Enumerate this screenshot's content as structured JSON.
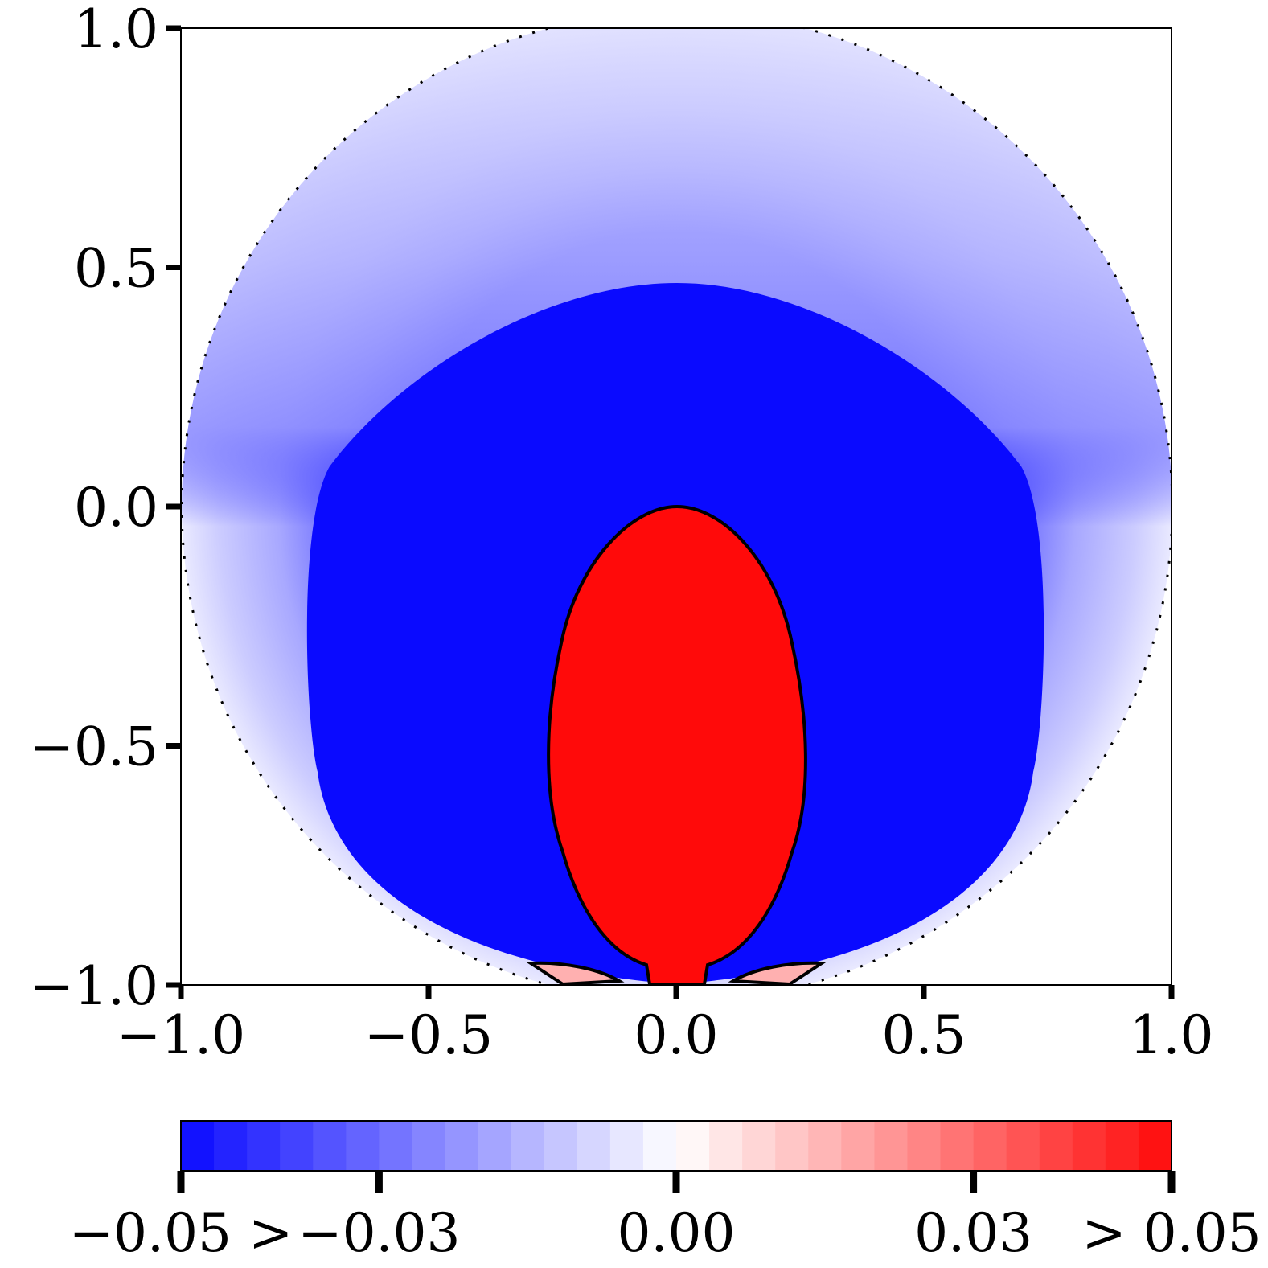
{
  "chart_data": {
    "type": "heatmap",
    "title": "",
    "xlabel": "",
    "ylabel": "",
    "xlim": [
      -1.0,
      1.0
    ],
    "ylim": [
      -1.0,
      1.0
    ],
    "x_ticks": [
      {
        "value": -1.0,
        "label": "−1.0"
      },
      {
        "value": -0.5,
        "label": "−0.5"
      },
      {
        "value": 0.0,
        "label": "0.0"
      },
      {
        "value": 0.5,
        "label": "0.5"
      },
      {
        "value": 1.0,
        "label": "1.0"
      }
    ],
    "y_ticks": [
      {
        "value": -1.0,
        "label": "−1.0"
      },
      {
        "value": -0.5,
        "label": "−0.5"
      },
      {
        "value": 0.0,
        "label": "0.0"
      },
      {
        "value": 0.5,
        "label": "0.5"
      },
      {
        "value": 1.0,
        "label": "1.0"
      }
    ],
    "domain": {
      "shape": "circle",
      "center": [
        0.0,
        0.0
      ],
      "radius": 1.0,
      "clipped_at_y": -1.0
    },
    "regions": [
      {
        "name": "outer band",
        "approx_value": -0.02,
        "description": "light blue near circle boundary"
      },
      {
        "name": "main body",
        "approx_value": -0.05,
        "description": "saturated blue surrounding plume"
      },
      {
        "name": "plume",
        "approx_value": 0.05,
        "description": "red plume from bottom center up to y=0.0",
        "outline": [
          [
            0.0,
            0.0
          ],
          [
            0.16,
            -0.08
          ],
          [
            0.24,
            -0.3
          ],
          [
            0.26,
            -0.55
          ],
          [
            0.2,
            -0.88
          ],
          [
            0.06,
            -0.98
          ],
          [
            0.05,
            -1.0
          ],
          [
            -0.05,
            -1.0
          ],
          [
            -0.06,
            -0.98
          ],
          [
            -0.2,
            -0.88
          ],
          [
            -0.26,
            -0.55
          ],
          [
            -0.24,
            -0.3
          ],
          [
            -0.16,
            -0.08
          ]
        ]
      }
    ],
    "zero_contour": "solid black line around plume and small lobes near y=-0.97",
    "colorbar": {
      "orientation": "horizontal",
      "min": -0.05,
      "max": 0.05,
      "levels": 30,
      "colormap": "bwr",
      "colors": {
        "min": "#0a0aff",
        "mid": "#ffffff",
        "max": "#ff0a0a"
      },
      "ticks": [
        {
          "value": -0.05,
          "label": "−0.05 >"
        },
        {
          "value": -0.03,
          "label": "−0.03"
        },
        {
          "value": 0.0,
          "label": "0.00"
        },
        {
          "value": 0.03,
          "label": "0.03"
        },
        {
          "value": 0.05,
          "label": "> 0.05"
        }
      ]
    }
  }
}
